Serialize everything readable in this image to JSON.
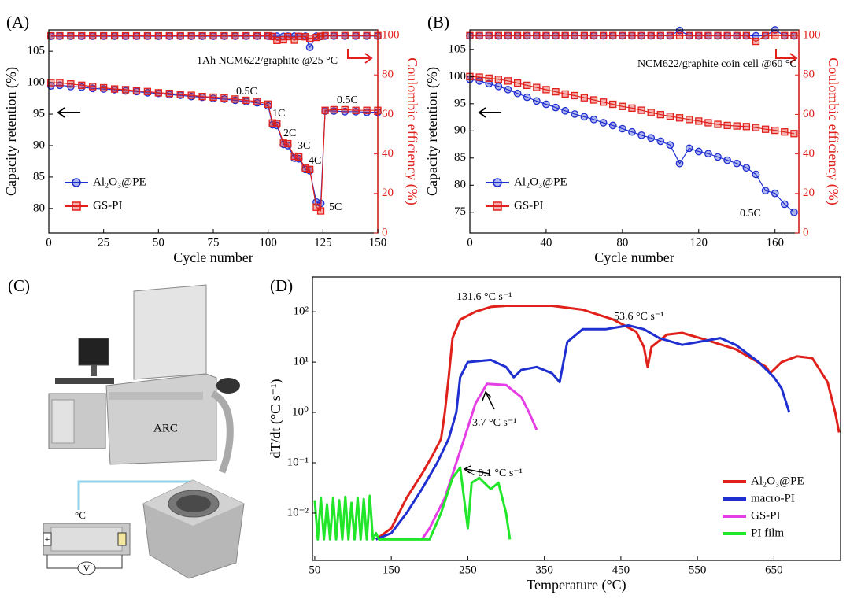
{
  "chart_data": [
    {
      "type": "line",
      "panel": "(A)",
      "xlabel": "Cycle number",
      "ylabel": "Capacity retention (%)",
      "y2label": "Coulombic efficiency (%)",
      "y2color": "#e0201b",
      "xlim": [
        0,
        150
      ],
      "xticks": [
        0,
        25,
        50,
        75,
        100,
        125,
        150
      ],
      "ylim": [
        76.1,
        108.4
      ],
      "yticks": [
        80,
        85,
        90,
        95,
        100,
        105
      ],
      "y2lim": [
        0,
        102.8
      ],
      "y2ticks": [
        0,
        20,
        40,
        60,
        80,
        100
      ],
      "annotations": [
        "1Ah NCM622/graphite @25 °C",
        "0.5C",
        "1C",
        "2C",
        "3C",
        "4C",
        "5C",
        "0.5C"
      ],
      "x": [
        1,
        5,
        10,
        15,
        20,
        25,
        30,
        35,
        40,
        45,
        50,
        55,
        60,
        65,
        70,
        75,
        80,
        85,
        90,
        95,
        100,
        102,
        104,
        107,
        109,
        112,
        114,
        117,
        119,
        122,
        124,
        126,
        130,
        135,
        140,
        145,
        150
      ],
      "series": [
        {
          "name": "Al₂O₃@PE",
          "color": "#1f2fd0",
          "marker": "circle",
          "values": [
            99.5,
            99.6,
            99.4,
            99.3,
            99.1,
            99.0,
            98.9,
            98.7,
            98.6,
            98.4,
            98.3,
            98.1,
            98.0,
            97.8,
            97.7,
            97.5,
            97.4,
            97.2,
            97.0,
            96.8,
            96.3,
            93.3,
            93.2,
            90.2,
            90.0,
            88.0,
            87.9,
            86.2,
            86.0,
            81.0,
            80.8,
            95.5,
            95.5,
            95.4,
            95.4,
            95.3,
            95.3
          ]
        },
        {
          "name": "GS-PI",
          "color": "#e0201b",
          "marker": "square",
          "values": [
            100.0,
            100.0,
            99.8,
            99.6,
            99.4,
            99.2,
            99.0,
            98.9,
            98.7,
            98.6,
            98.4,
            98.3,
            98.1,
            98.0,
            97.8,
            97.7,
            97.6,
            97.4,
            97.2,
            97.0,
            96.6,
            93.6,
            93.5,
            90.4,
            90.3,
            88.3,
            88.2,
            86.4,
            86.2,
            80.2,
            79.6,
            95.6,
            95.7,
            95.7,
            95.6,
            95.6,
            95.6
          ]
        },
        {
          "name": "Al₂O₃@PE",
          "color": "#1f2fd0",
          "marker": "circle",
          "axis": "y2",
          "values": [
            99.6,
            99.6,
            99.6,
            99.6,
            99.6,
            99.6,
            99.6,
            99.6,
            99.6,
            99.6,
            99.6,
            99.6,
            99.6,
            99.6,
            99.6,
            99.6,
            99.6,
            99.6,
            99.6,
            99.6,
            99.6,
            99.5,
            99.6,
            99.5,
            99.6,
            99.6,
            99.5,
            99.6,
            94,
            99.6,
            99.5,
            99.7,
            99.7,
            99.7,
            99.7,
            99.7,
            99.7
          ]
        },
        {
          "name": "GS-PI",
          "color": "#e0201b",
          "marker": "square",
          "axis": "y2",
          "values": [
            99.8,
            99.8,
            99.8,
            99.8,
            99.8,
            99.8,
            99.8,
            99.8,
            99.8,
            99.8,
            99.8,
            99.8,
            99.8,
            99.8,
            99.8,
            99.8,
            99.8,
            99.8,
            99.8,
            99.8,
            99.8,
            99.5,
            97.5,
            97.8,
            99.4,
            97.6,
            99.5,
            99.3,
            98.5,
            99.0,
            99.6,
            99.9,
            99.9,
            99.9,
            99.9,
            99.9,
            99.9
          ]
        }
      ]
    },
    {
      "type": "line",
      "panel": "(B)",
      "xlabel": "Cycle number",
      "ylabel": "Capacity retention (%)",
      "y2label": "Coulombic efficiency (%)",
      "y2color": "#e0201b",
      "xlim": [
        0,
        172.5
      ],
      "xticks": [
        0,
        40,
        80,
        120,
        160
      ],
      "ylim": [
        71.2,
        108.6
      ],
      "yticks": [
        75,
        80,
        85,
        90,
        95,
        100,
        105
      ],
      "y2lim": [
        0,
        102.8
      ],
      "y2ticks": [
        0,
        20,
        40,
        60,
        80,
        100
      ],
      "annotations": [
        "NCM622/graphite coin cell @60 °C",
        "0.5C"
      ],
      "x": [
        0,
        5,
        10,
        15,
        20,
        25,
        30,
        35,
        40,
        45,
        50,
        55,
        60,
        65,
        70,
        75,
        80,
        85,
        90,
        95,
        100,
        105,
        110,
        115,
        120,
        125,
        130,
        135,
        140,
        145,
        150,
        155,
        160,
        165,
        170
      ],
      "series": [
        {
          "name": "Al₂O₃@PE",
          "color": "#1f2fd0",
          "marker": "circle",
          "values": [
            99.5,
            99.2,
            98.7,
            98.2,
            97.6,
            96.9,
            96.2,
            95.5,
            94.9,
            94.3,
            93.7,
            93.1,
            92.6,
            92.1,
            91.5,
            91.0,
            90.4,
            89.8,
            89.2,
            88.7,
            88.1,
            87.4,
            84.0,
            86.8,
            86.2,
            85.8,
            85.2,
            84.6,
            84.0,
            83.2,
            82.0,
            79.0,
            78.5,
            76.5,
            75.0
          ]
        },
        {
          "name": "GS-PI",
          "color": "#e0201b",
          "marker": "square",
          "values": [
            100,
            99.9,
            99.7,
            99.5,
            99.2,
            98.8,
            98.4,
            98.0,
            97.6,
            97.2,
            96.8,
            96.5,
            96.1,
            95.7,
            95.3,
            94.9,
            94.5,
            94.2,
            93.8,
            93.4,
            93.0,
            92.7,
            92.4,
            92.1,
            91.8,
            91.5,
            91.2,
            91.0,
            90.9,
            90.8,
            90.6,
            90.3,
            90.1,
            89.8,
            89.5
          ]
        },
        {
          "name": "Al₂O₃@PE",
          "color": "#1f2fd0",
          "marker": "circle",
          "axis": "y2",
          "values": [
            99.8,
            99.8,
            99.8,
            99.8,
            99.8,
            99.8,
            99.8,
            99.8,
            99.8,
            99.8,
            99.8,
            99.8,
            99.8,
            99.8,
            99.8,
            99.8,
            99.8,
            99.8,
            99.8,
            99.8,
            99.8,
            99.8,
            102.5,
            99.8,
            99.8,
            99.8,
            99.8,
            99.8,
            99.8,
            99.8,
            99.8,
            99.8,
            102.8,
            99.8,
            99.8
          ]
        },
        {
          "name": "GS-PI",
          "color": "#e0201b",
          "marker": "square",
          "axis": "y2",
          "values": [
            99.9,
            99.9,
            99.9,
            99.9,
            99.9,
            99.9,
            99.9,
            99.9,
            99.9,
            99.9,
            99.9,
            99.9,
            99.9,
            99.9,
            99.9,
            99.9,
            99.9,
            99.9,
            99.9,
            99.9,
            99.9,
            99.9,
            99.9,
            99.9,
            99.9,
            99.9,
            99.9,
            99.9,
            99.9,
            99.9,
            97,
            99.9,
            99.9,
            99.9,
            99.9
          ]
        }
      ]
    },
    {
      "type": "line",
      "panel": "(D)",
      "yscale": "log",
      "xlabel": "Temperature (°C)",
      "ylabel": "dT/dt (°C s⁻¹)",
      "xlim": [
        47,
        737
      ],
      "xticks": [
        50,
        150,
        250,
        350,
        450,
        550,
        650
      ],
      "ylim": [
        0.00115,
        490
      ],
      "yticks": [
        {
          "value": 0.01,
          "label": "10⁻²"
        },
        {
          "value": 0.1,
          "label": "10⁻¹"
        },
        {
          "value": 1,
          "label": "10⁰"
        },
        {
          "value": 10,
          "label": "10¹"
        },
        {
          "value": 100,
          "label": "10²"
        }
      ],
      "annotations": [
        "131.6 °C s⁻¹",
        "53.6 °C s⁻¹",
        "3.7 °C s⁻¹",
        "< 0.1 °C s⁻¹"
      ],
      "series": [
        {
          "name": "Al₂O₃@PE",
          "color": "#e0201b",
          "x": [
            130,
            150,
            170,
            190,
            205,
            215,
            220,
            225,
            230,
            240,
            260,
            280,
            300,
            360,
            400,
            440,
            470,
            480,
            485,
            490,
            510,
            530,
            560,
            600,
            640,
            645,
            660,
            680,
            700,
            720,
            730,
            735
          ],
          "values": [
            0.003,
            0.005,
            0.02,
            0.06,
            0.15,
            0.3,
            1,
            5,
            30,
            70,
            100,
            125,
            131.6,
            131.6,
            110,
            70,
            40,
            20,
            8,
            20,
            35,
            38,
            28,
            18,
            8,
            6,
            10,
            13,
            12,
            4,
            1,
            0.4
          ]
        },
        {
          "name": "macro-PI",
          "color": "#1f2fd0",
          "x": [
            130,
            150,
            170,
            190,
            210,
            225,
            235,
            240,
            250,
            280,
            300,
            310,
            320,
            340,
            360,
            370,
            380,
            400,
            430,
            460,
            480,
            500,
            530,
            580,
            600,
            630,
            650,
            660,
            670
          ],
          "values": [
            0.003,
            0.004,
            0.01,
            0.03,
            0.1,
            0.3,
            1,
            5,
            10,
            11,
            8,
            5,
            7,
            8,
            6,
            4,
            25,
            45,
            45,
            53.6,
            45,
            30,
            22,
            30,
            22,
            10,
            5,
            3,
            1
          ]
        },
        {
          "name": "GS-PI",
          "color": "#e43ee4",
          "x": [
            190,
            200,
            220,
            235,
            250,
            260,
            275,
            300,
            320,
            330,
            340
          ],
          "values": [
            0.003,
            0.005,
            0.02,
            0.1,
            0.5,
            1.5,
            3.7,
            3.5,
            2,
            1,
            0.45
          ]
        },
        {
          "name": "PI film",
          "color": "#22e62a",
          "x": [
            50,
            54,
            58,
            62,
            66,
            70,
            74,
            78,
            82,
            86,
            90,
            94,
            98,
            102,
            106,
            110,
            114,
            118,
            122,
            126,
            130,
            134,
            150,
            170,
            190,
            200,
            215,
            230,
            240,
            250,
            255,
            265,
            280,
            290,
            300,
            305
          ],
          "values": [
            0.018,
            0.003,
            0.02,
            0.003,
            0.015,
            0.003,
            0.02,
            0.003,
            0.018,
            0.003,
            0.021,
            0.003,
            0.016,
            0.003,
            0.02,
            0.003,
            0.019,
            0.003,
            0.022,
            0.003,
            0.004,
            0.003,
            0.003,
            0.003,
            0.003,
            0.003,
            0.01,
            0.05,
            0.08,
            0.005,
            0.04,
            0.05,
            0.03,
            0.04,
            0.01,
            0.003
          ]
        }
      ]
    }
  ],
  "panel_c": {
    "label": "(C)",
    "arc": "ARC",
    "sensor": "°C",
    "meter": "V",
    "plus": "+"
  }
}
